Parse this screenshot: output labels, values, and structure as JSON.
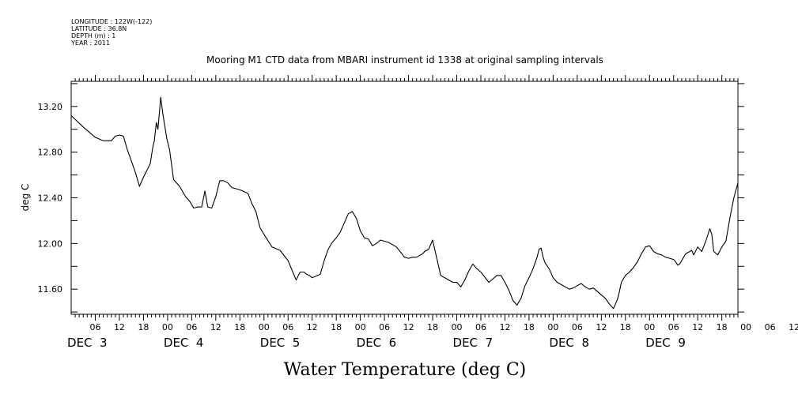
{
  "header": {
    "longitude": "LONGITUDE : 122W(-122)",
    "latitude": "LATITUDE : 36.8N",
    "depth": "DEPTH (m) : 1",
    "year": "YEAR : 2011"
  },
  "chart_data": {
    "type": "line",
    "title": "Mooring M1 CTD data from MBARI instrument id 1338 at original sampling intervals",
    "xlabel": "Water Temperature (deg C)",
    "ylabel": "deg C",
    "x_unit": "hours since Dec 3 00:00 (2011)",
    "xlim": [
      0,
      166
    ],
    "ylim": [
      11.38,
      13.42
    ],
    "y_ticks": [
      "11.60",
      "12.00",
      "12.40",
      "12.80",
      "13.20"
    ],
    "x_hour_labels": [
      "06",
      "12",
      "18",
      "00",
      "06",
      "12",
      "18",
      "00",
      "06",
      "12",
      "18",
      "00",
      "06",
      "12",
      "18",
      "00",
      "06",
      "12",
      "18",
      "00",
      "06",
      "12",
      "18",
      "00",
      "06",
      "12",
      "18",
      "00",
      "06",
      "12",
      "18",
      "00"
    ],
    "day_labels": [
      "DEC  3",
      "DEC  4",
      "DEC  5",
      "DEC  6",
      "DEC  7",
      "DEC  8",
      "DEC  9"
    ],
    "grid": false,
    "series": [
      {
        "name": "",
        "x": [
          0.0,
          3.0,
          6.0,
          8.0,
          10.0,
          11.0,
          12.0,
          13.0,
          14.0,
          15.0,
          16.0,
          17.0,
          18.0,
          19.0,
          19.7,
          20.3,
          20.7,
          21.2,
          21.6,
          22.3,
          22.8,
          23.8,
          24.5,
          25.5,
          27.0,
          28.5,
          29.5,
          30.5,
          31.5,
          32.5,
          33.3,
          34.0,
          35.0,
          36.0,
          37.0,
          38.0,
          39.0,
          40.0,
          42.0,
          44.0,
          45.0,
          46.0,
          47.0,
          48.0,
          50.0,
          52.0,
          54.0,
          56.0,
          57.0,
          58.0,
          58.6,
          59.3,
          60.0,
          62.0,
          63.0,
          64.0,
          65.0,
          66.0,
          67.0,
          68.0,
          69.0,
          70.0,
          71.0,
          72.0,
          73.0,
          74.0,
          75.0,
          76.0,
          77.0,
          79.0,
          81.0,
          83.0,
          84.0,
          85.0,
          86.0,
          87.0,
          87.5,
          88.0,
          89.0,
          90.0,
          92.0,
          94.0,
          95.0,
          96.0,
          97.0,
          98.0,
          99.0,
          100.0,
          101.0,
          102.0,
          104.0,
          106.0,
          107.0,
          108.0,
          109.0,
          110.0,
          111.0,
          112.0,
          113.0,
          114.0,
          115.0,
          116.0,
          116.5,
          117.0,
          117.5,
          118.0,
          119.0,
          120.0,
          121.0,
          122.0,
          124.0,
          125.0,
          126.0,
          127.0,
          128.0,
          129.0,
          130.0,
          131.0,
          132.0,
          133.0,
          134.0,
          135.0,
          136.0,
          136.5,
          137.0,
          138.0,
          139.0,
          140.0,
          141.0,
          142.0,
          143.0,
          144.0,
          145.0,
          146.0,
          147.0,
          148.0,
          149.0,
          150.0,
          150.5,
          151.0,
          151.5,
          152.0,
          152.5,
          153.0,
          154.0,
          154.5,
          155.0,
          156.0,
          157.0,
          158.0,
          159.0,
          159.5,
          160.0,
          161.0,
          162.0,
          163.0,
          164.0,
          165.0,
          166.0
        ],
        "y": [
          13.12,
          13.02,
          12.93,
          12.9,
          12.9,
          12.94,
          12.95,
          12.94,
          12.82,
          12.72,
          12.62,
          12.5,
          12.58,
          12.65,
          12.7,
          12.84,
          12.9,
          13.06,
          13.0,
          13.28,
          13.14,
          12.92,
          12.82,
          12.56,
          12.5,
          12.41,
          12.37,
          12.31,
          12.32,
          12.32,
          12.46,
          12.32,
          12.31,
          12.41,
          12.55,
          12.55,
          12.53,
          12.49,
          12.47,
          12.44,
          12.35,
          12.28,
          12.14,
          12.08,
          11.97,
          11.94,
          11.85,
          11.68,
          11.75,
          11.75,
          11.73,
          11.72,
          11.7,
          11.73,
          11.85,
          11.95,
          12.01,
          12.05,
          12.1,
          12.18,
          12.26,
          12.28,
          12.22,
          12.11,
          12.05,
          12.04,
          11.98,
          12.0,
          12.03,
          12.01,
          11.97,
          11.88,
          11.87,
          11.88,
          11.88,
          11.9,
          11.91,
          11.93,
          11.95,
          12.03,
          11.72,
          11.68,
          11.66,
          11.66,
          11.62,
          11.68,
          11.76,
          11.82,
          11.78,
          11.75,
          11.66,
          11.72,
          11.72,
          11.66,
          11.59,
          11.5,
          11.46,
          11.52,
          11.63,
          11.7,
          11.78,
          11.88,
          11.95,
          11.96,
          11.88,
          11.83,
          11.78,
          11.7,
          11.66,
          11.64,
          11.6,
          11.61,
          11.63,
          11.65,
          11.62,
          11.6,
          11.61,
          11.58,
          11.55,
          11.52,
          11.47,
          11.43,
          11.51,
          11.58,
          11.66,
          11.72,
          11.75,
          11.79,
          11.84,
          11.91,
          11.97,
          11.98,
          11.93,
          11.91,
          11.9,
          11.88,
          11.87,
          11.86,
          11.84,
          11.81,
          11.82,
          11.85,
          11.88,
          11.91,
          11.93,
          11.94,
          11.9,
          11.97,
          11.93,
          12.02,
          12.13,
          12.08,
          11.93,
          11.9,
          11.97,
          12.02,
          12.22,
          12.4,
          12.53
        ]
      }
    ]
  }
}
